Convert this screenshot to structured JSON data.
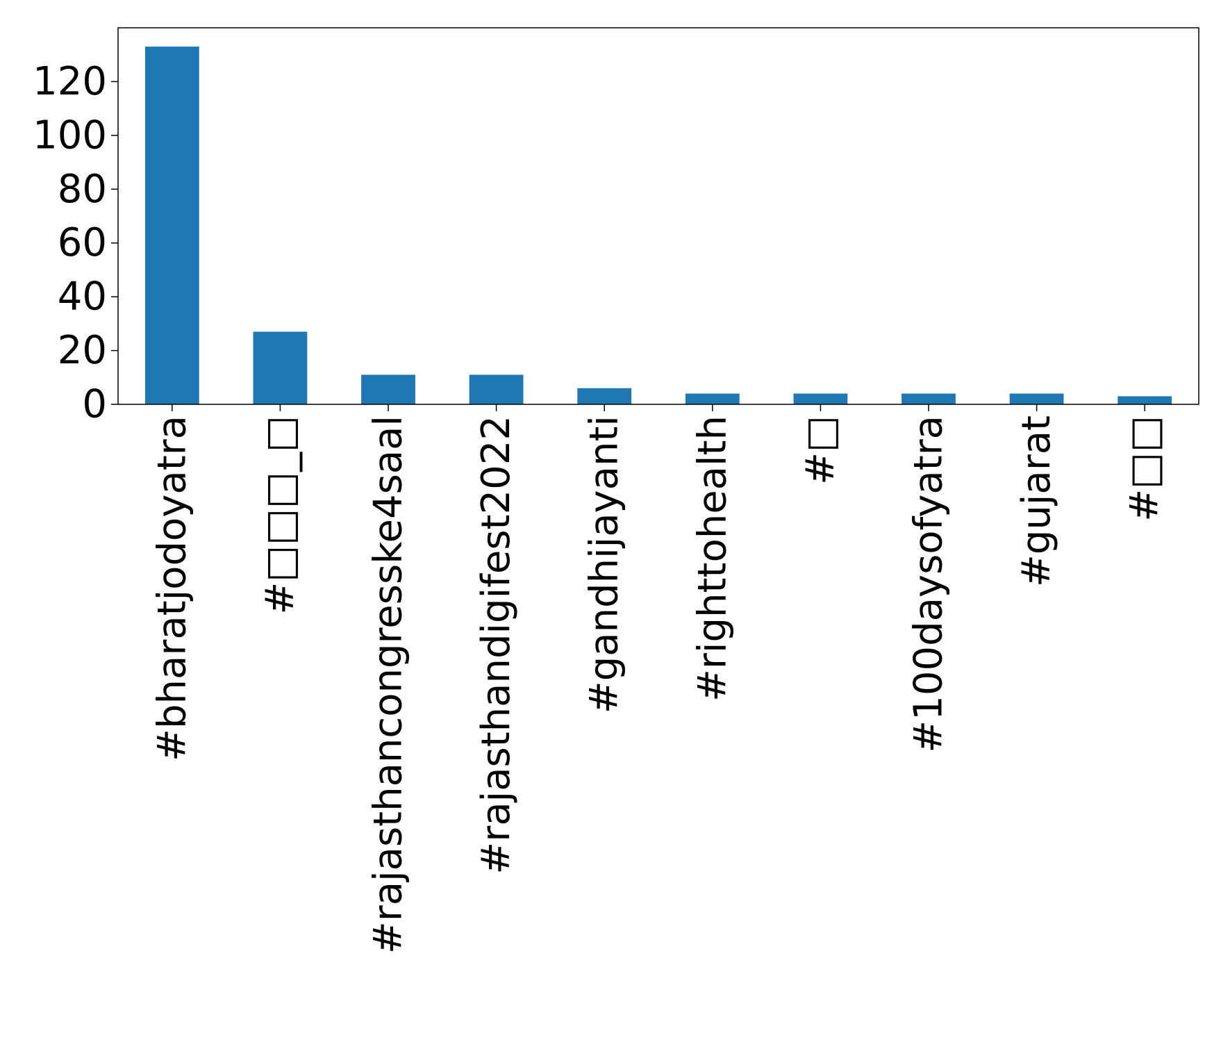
{
  "chart_data": {
    "type": "bar",
    "title": "",
    "xlabel": "",
    "ylabel": "",
    "categories": [
      "#bharatjodoyatra",
      "#□□□_□",
      "#rajasthancongresske4saal",
      "#rajasthandigifest2022",
      "#gandhijayanti",
      "#righttohealth",
      "#□",
      "#100daysofyatra",
      "#gujarat",
      "#□□"
    ],
    "values": [
      133,
      27,
      11,
      11,
      6,
      4,
      4,
      4,
      4,
      3
    ],
    "ylim": [
      0,
      140
    ],
    "yticks": [
      0,
      20,
      40,
      60,
      80,
      100,
      120
    ],
    "ytick_labels": [
      "0",
      "20",
      "40",
      "60",
      "80",
      "100",
      "120"
    ],
    "grid": false,
    "legend": "none",
    "bar_color": "#1f77b4"
  }
}
